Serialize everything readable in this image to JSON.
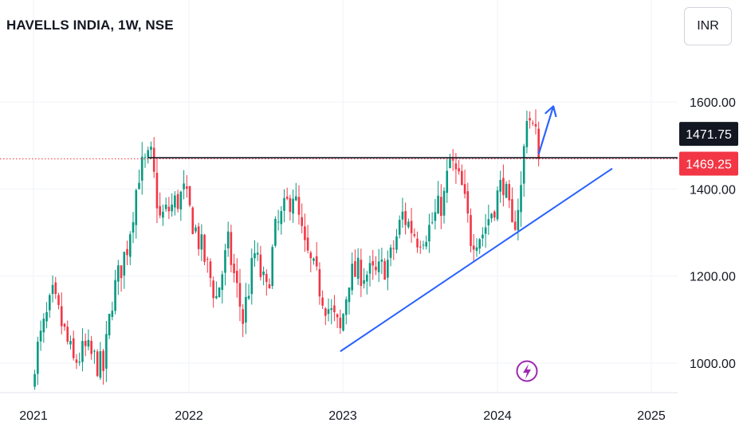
{
  "header": {
    "title": "HAVELLS INDIA, 1W, NSE",
    "currency": "INR"
  },
  "colors": {
    "up": "#089981",
    "down": "#f23645",
    "trendline": "#2962ff",
    "resistance": "#131722",
    "grid": "#f0f3fa",
    "last_price_tag": "#f23645",
    "crosshair_tag": "#131722",
    "flash_icon": "#9c27b0"
  },
  "chart_data": {
    "type": "candlestick",
    "title": "HAVELLS INDIA, 1W, NSE",
    "interval": "1W",
    "exchange": "NSE",
    "ylim": [
      935,
      1660
    ],
    "y_ticks": [
      "1000.00",
      "1200.00",
      "1400.00",
      "1600.00"
    ],
    "y_tick_values": [
      1000,
      1200,
      1400,
      1600
    ],
    "x_ticks": [
      "2021",
      "2022",
      "2023",
      "2024",
      "2025"
    ],
    "x_tick_dates": [
      "2021-01-01",
      "2022-01-01",
      "2023-01-01",
      "2024-01-01",
      "2025-01-01"
    ],
    "x_range": [
      "2020-12-28",
      "2025-03-01"
    ],
    "grid": true,
    "price_tags": [
      {
        "label": "1471.75",
        "value": 1471.75,
        "kind": "crosshair"
      },
      {
        "label": "1469.25",
        "value": 1469.25,
        "kind": "last"
      }
    ],
    "anchors": [
      [
        "2021-01-04",
        1010
      ],
      [
        "2021-02-15",
        1150
      ],
      [
        "2021-03-08",
        1090
      ],
      [
        "2021-04-05",
        1000
      ],
      [
        "2021-05-03",
        1030
      ],
      [
        "2021-06-14",
        985
      ],
      [
        "2021-07-05",
        1150
      ],
      [
        "2021-08-09",
        1270
      ],
      [
        "2021-09-06",
        1440
      ],
      [
        "2021-10-04",
        1470
      ],
      [
        "2021-10-25",
        1330
      ],
      [
        "2021-11-22",
        1360
      ],
      [
        "2021-12-20",
        1390
      ],
      [
        "2022-02-07",
        1240
      ],
      [
        "2022-03-07",
        1150
      ],
      [
        "2022-04-04",
        1270
      ],
      [
        "2022-05-09",
        1100
      ],
      [
        "2022-06-06",
        1250
      ],
      [
        "2022-07-04",
        1160
      ],
      [
        "2022-07-25",
        1300
      ],
      [
        "2022-09-05",
        1395
      ],
      [
        "2022-10-03",
        1260
      ],
      [
        "2022-11-21",
        1140
      ],
      [
        "2022-12-26",
        1070
      ],
      [
        "2023-01-16",
        1200
      ],
      [
        "2023-02-13",
        1210
      ],
      [
        "2023-03-20",
        1200
      ],
      [
        "2023-04-24",
        1240
      ],
      [
        "2023-05-22",
        1340
      ],
      [
        "2023-06-26",
        1290
      ],
      [
        "2023-07-24",
        1310
      ],
      [
        "2023-08-28",
        1380
      ],
      [
        "2023-09-11",
        1465
      ],
      [
        "2023-10-09",
        1400
      ],
      [
        "2023-10-30",
        1290
      ],
      [
        "2023-11-27",
        1300
      ],
      [
        "2023-12-18",
        1350
      ],
      [
        "2024-01-15",
        1420
      ],
      [
        "2024-02-05",
        1300
      ],
      [
        "2024-02-26",
        1400
      ],
      [
        "2024-03-11",
        1580
      ],
      [
        "2024-04-01",
        1520
      ],
      [
        "2024-04-08",
        1469.25
      ]
    ],
    "resistance_line": {
      "from": "2021-09-27",
      "to": "2025-03-01",
      "value": 1471.75
    },
    "trendline": {
      "from": [
        "2022-12-26",
        1027
      ],
      "to": [
        "2024-09-30",
        1447
      ]
    },
    "projection_arrow": {
      "from": [
        "2024-04-08",
        1480
      ],
      "to": [
        "2024-05-13",
        1590
      ]
    }
  }
}
